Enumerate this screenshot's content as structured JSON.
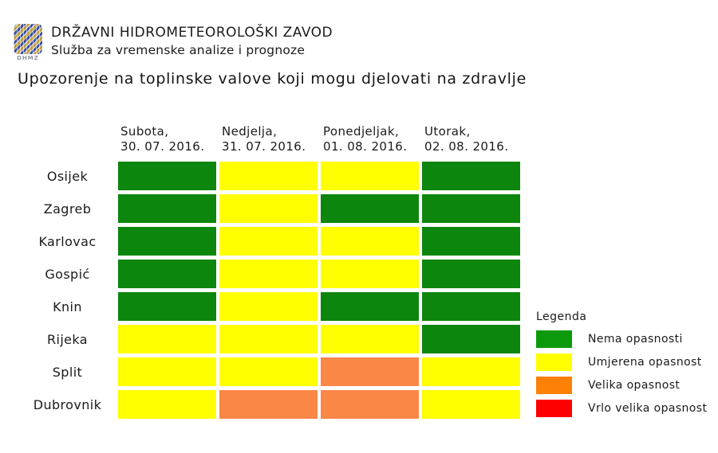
{
  "header": {
    "org_name": "DRŽAVNI HIDROMETEOROLOŠKI ZAVOD",
    "dept_name": "Služba za vremenske analize i prognoze",
    "logo_text": "DHMZ"
  },
  "title": "Upozorenje na toplinske valove koji mogu djelovati na zdravlje",
  "chart_data": {
    "type": "heatmap",
    "title": "Upozorenje na toplinske valove koji mogu djelovati na zdravlje",
    "columns": [
      {
        "day": "Subota,",
        "date": "30. 07. 2016."
      },
      {
        "day": "Nedjelja,",
        "date": "31. 07. 2016."
      },
      {
        "day": "Ponedjeljak,",
        "date": "01. 08. 2016."
      },
      {
        "day": "Utorak,",
        "date": "02. 08. 2016."
      }
    ],
    "cities": [
      "Osijek",
      "Zagreb",
      "Karlovac",
      "Gospić",
      "Knin",
      "Rijeka",
      "Split",
      "Dubrovnik"
    ],
    "values": [
      [
        "none",
        "moderate",
        "moderate",
        "none"
      ],
      [
        "none",
        "moderate",
        "none",
        "none"
      ],
      [
        "none",
        "moderate",
        "moderate",
        "none"
      ],
      [
        "none",
        "moderate",
        "moderate",
        "none"
      ],
      [
        "none",
        "moderate",
        "none",
        "none"
      ],
      [
        "moderate",
        "moderate",
        "moderate",
        "none"
      ],
      [
        "moderate",
        "moderate",
        "high",
        "moderate"
      ],
      [
        "moderate",
        "high",
        "high",
        "moderate"
      ]
    ],
    "level_labels": {
      "none": "Nema opasnosti",
      "moderate": "Umjerena opasnost",
      "high": "Velika opasnost",
      "very_high": "Vrlo velika opasnost"
    },
    "cell_colors": {
      "none": "#0d860d",
      "moderate": "#ffff00",
      "high": "#fb8747",
      "very_high": "#fe0000"
    },
    "legend": {
      "title": "Legenda",
      "position": "right",
      "items": [
        {
          "label": "Nema opasnosti",
          "color": "#0c9a0c"
        },
        {
          "label": "Umjerena opasnost",
          "color": "#ffff00"
        },
        {
          "label": "Velika opasnost",
          "color": "#fc8106"
        },
        {
          "label": "Vrlo velika opasnost",
          "color": "#fe0000"
        }
      ]
    }
  }
}
